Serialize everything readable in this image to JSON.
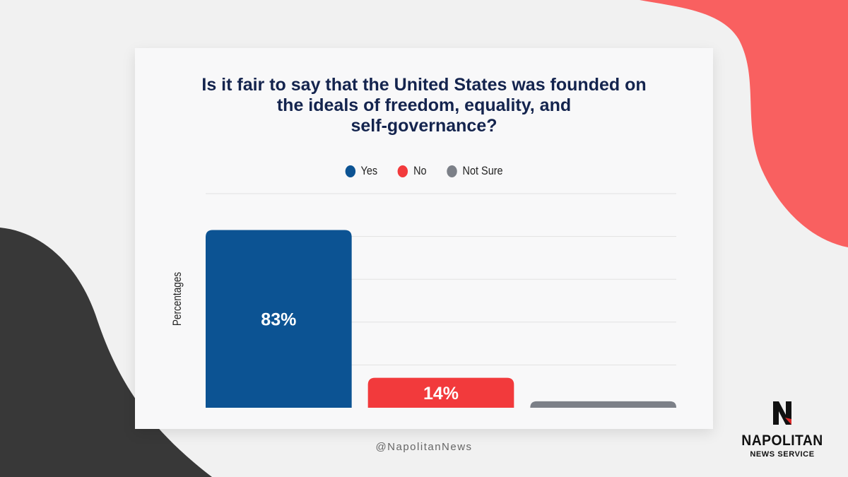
{
  "colors": {
    "background": "#f1f1f1",
    "card": "#f8f8f9",
    "title": "#14244e",
    "accent_coral": "#f96060",
    "accent_dark": "#383838",
    "grid": "#e2e2e2"
  },
  "chart_data": {
    "type": "bar",
    "title": "Is it fair to say that the United States was founded on\nthe ideals of freedom, equality, and\nself-governance?",
    "ylabel": "Percentages",
    "xlabel": "",
    "ylim": [
      0,
      100
    ],
    "grid": true,
    "legend_position": "top-center",
    "series": [
      {
        "name": "Yes",
        "value": 83,
        "label": "83%",
        "color": "#0c5393",
        "label_visible": true
      },
      {
        "name": "No",
        "value": 14,
        "label": "14%",
        "color": "#f23a3c",
        "label_visible": true
      },
      {
        "name": "Not Sure",
        "value": 3,
        "label": "3%",
        "color": "#7c8088",
        "label_visible": false
      }
    ]
  },
  "footer": {
    "handle": "@NapolitanNews"
  },
  "logo": {
    "icon": "napolitan-n-logo-icon",
    "name": "NAPOLITAN",
    "subtitle": "NEWS SERVICE"
  }
}
